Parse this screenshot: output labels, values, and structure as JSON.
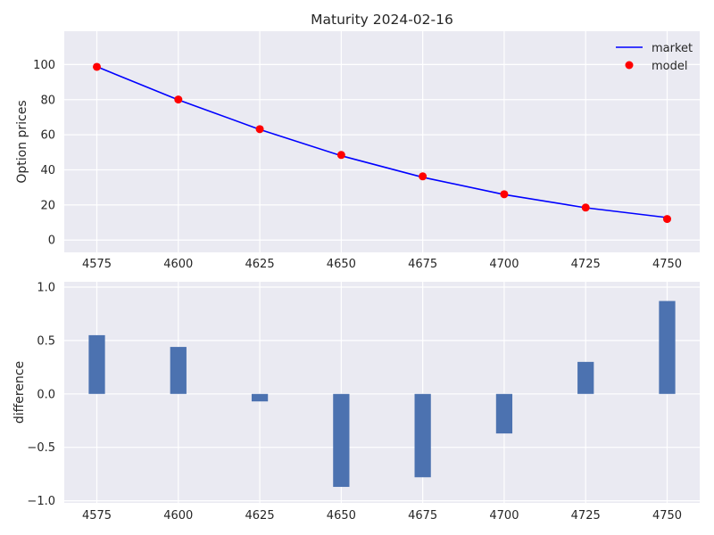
{
  "chart_data": [
    {
      "type": "line",
      "title": "Maturity 2024-02-16",
      "xlabel": "",
      "ylabel": "Option prices",
      "x": [
        4575,
        4600,
        4625,
        4650,
        4675,
        4700,
        4725,
        4750
      ],
      "xticks": [
        "4575",
        "4600",
        "4625",
        "4650",
        "4675",
        "4700",
        "4725",
        "4750"
      ],
      "yticks": [
        "0",
        "20",
        "40",
        "60",
        "80",
        "100"
      ],
      "xlim": [
        4565,
        4760
      ],
      "ylim": [
        -7,
        119
      ],
      "grid": true,
      "legend_position": "top-right",
      "series": [
        {
          "name": "market",
          "style": "line",
          "color": "#0000ff",
          "values": [
            98.8,
            79.9,
            63.0,
            48.0,
            35.8,
            25.9,
            18.4,
            12.8
          ]
        },
        {
          "name": "model",
          "style": "markers",
          "color": "#ff0000",
          "values": [
            98.7,
            80.1,
            63.2,
            48.5,
            36.3,
            26.1,
            18.5,
            12.0
          ]
        }
      ]
    },
    {
      "type": "bar",
      "title": "",
      "xlabel": "",
      "ylabel": "difference",
      "x": [
        4575,
        4600,
        4625,
        4650,
        4675,
        4700,
        4725,
        4750
      ],
      "xticks": [
        "4575",
        "4600",
        "4625",
        "4650",
        "4675",
        "4700",
        "4725",
        "4750"
      ],
      "yticks": [
        "−1.0",
        "−0.5",
        "0.0",
        "0.5",
        "1.0"
      ],
      "ytick_values": [
        -1.0,
        -0.5,
        0.0,
        0.5,
        1.0
      ],
      "xlim": [
        4565,
        4760
      ],
      "ylim": [
        -1.02,
        1.05
      ],
      "grid": true,
      "bar_width": 5,
      "color": "#4c72b0",
      "values": [
        0.55,
        0.44,
        -0.07,
        -0.87,
        -0.78,
        -0.37,
        0.3,
        0.87
      ]
    }
  ]
}
